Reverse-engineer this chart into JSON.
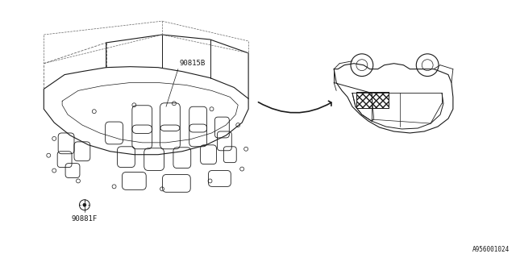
{
  "bg_color": "#ffffff",
  "line_color": "#1a1a1a",
  "dashed_color": "#666666",
  "part_label_1": "90815B",
  "part_label_2": "90881F",
  "diagram_id": "A956001024",
  "fig_width": 6.4,
  "fig_height": 3.2,
  "dpi": 100
}
